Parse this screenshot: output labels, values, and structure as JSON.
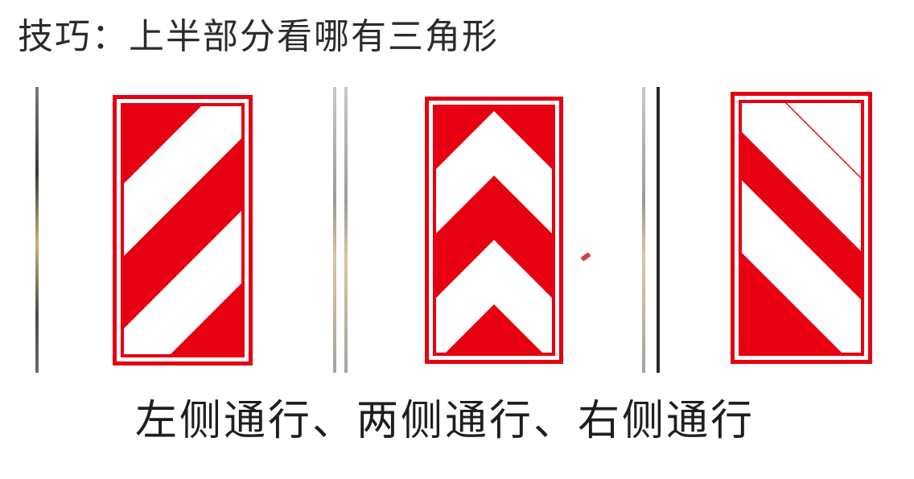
{
  "title": "技巧：上半部分看哪有三角形",
  "caption": "左侧通行、两侧通行、右侧通行",
  "colors": {
    "sign_red": "#e60012",
    "sign_white": "#ffffff",
    "text": "#2b2b2b"
  },
  "signs": [
    {
      "name": "left-pass-sign",
      "pattern": "diagonal-stripes-up-right"
    },
    {
      "name": "both-sides-pass-sign",
      "pattern": "chevrons-up"
    },
    {
      "name": "right-pass-sign",
      "pattern": "diagonal-stripes-down-right"
    }
  ]
}
